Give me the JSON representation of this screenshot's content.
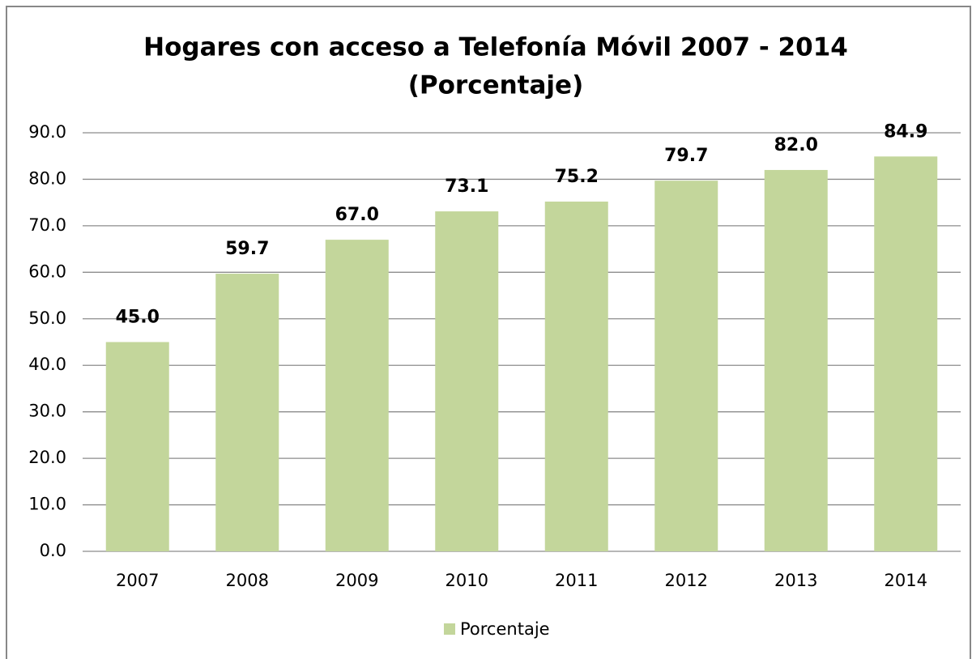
{
  "chart_data": {
    "type": "bar",
    "title": "Hogares con acceso a Telefonía Móvil 2007 - 2014",
    "subtitle": "(Porcentaje)",
    "categories": [
      "2007",
      "2008",
      "2009",
      "2010",
      "2011",
      "2012",
      "2013",
      "2014"
    ],
    "series": [
      {
        "name": "Porcentaje",
        "color": "#c3d69b",
        "values": [
          45.0,
          59.7,
          67.0,
          73.1,
          75.2,
          79.7,
          82.0,
          84.9
        ],
        "value_labels": [
          "45.0",
          "59.7",
          "67.0",
          "73.1",
          "75.2",
          "79.7",
          "82.0",
          "84.9"
        ]
      }
    ],
    "ylim": [
      0,
      90
    ],
    "yticks": [
      {
        "value": 0,
        "label": "0.0"
      },
      {
        "value": 10,
        "label": "10.0"
      },
      {
        "value": 20,
        "label": "20.0"
      },
      {
        "value": 30,
        "label": "30.0"
      },
      {
        "value": 40,
        "label": "40.0"
      },
      {
        "value": 50,
        "label": "50.0"
      },
      {
        "value": 60,
        "label": "60.0"
      },
      {
        "value": 70,
        "label": "70.0"
      },
      {
        "value": 80,
        "label": "80.0"
      },
      {
        "value": 90,
        "label": "90.0"
      }
    ],
    "grid": true,
    "legend": "bottom"
  }
}
